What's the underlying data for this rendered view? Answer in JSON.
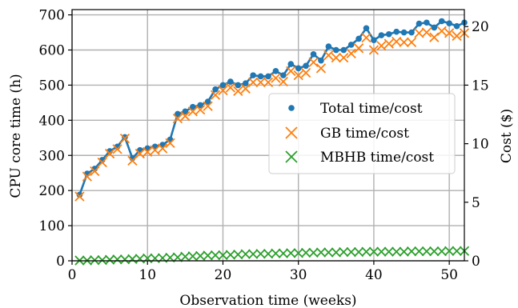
{
  "chart_data": {
    "type": "line",
    "xlabel": "Observation time (weeks)",
    "ylabel": "CPU core time (h)",
    "y2label": "Cost ($)",
    "xlim": [
      0,
      52
    ],
    "ylim": [
      0,
      715
    ],
    "y2lim": [
      0,
      21.45
    ],
    "xticks": [
      0,
      10,
      20,
      30,
      40,
      50
    ],
    "yticks": [
      0,
      100,
      200,
      300,
      400,
      500,
      600,
      700
    ],
    "y2ticks": [
      0,
      5,
      10,
      15,
      20
    ],
    "grid": true,
    "legend_position": "center-right",
    "x": [
      1,
      2,
      3,
      4,
      5,
      6,
      7,
      8,
      9,
      10,
      11,
      12,
      13,
      14,
      15,
      16,
      17,
      18,
      19,
      20,
      21,
      22,
      23,
      24,
      25,
      26,
      27,
      28,
      29,
      30,
      31,
      32,
      33,
      34,
      35,
      36,
      37,
      38,
      39,
      40,
      41,
      42,
      43,
      44,
      45,
      46,
      47,
      48,
      49,
      50,
      51,
      52
    ],
    "series": [
      {
        "name": "Total time/cost",
        "marker": "dot",
        "color": "#1f77b4",
        "line": true,
        "values": [
          188,
          248,
          262,
          287,
          312,
          325,
          352,
          292,
          315,
          320,
          325,
          330,
          345,
          418,
          425,
          438,
          443,
          453,
          488,
          500,
          510,
          500,
          505,
          528,
          525,
          525,
          540,
          528,
          560,
          548,
          555,
          588,
          570,
          610,
          600,
          600,
          615,
          632,
          662,
          628,
          642,
          645,
          652,
          650,
          650,
          675,
          678,
          664,
          682,
          676,
          668,
          678
        ]
      },
      {
        "name": "GB time/cost",
        "marker": "x",
        "color": "#ff7f0e",
        "line": false,
        "values": [
          183,
          240,
          255,
          280,
          305,
          318,
          348,
          285,
          305,
          310,
          315,
          320,
          335,
          405,
          412,
          425,
          430,
          440,
          472,
          485,
          493,
          483,
          490,
          508,
          508,
          508,
          520,
          510,
          540,
          528,
          535,
          565,
          548,
          585,
          578,
          578,
          590,
          605,
          635,
          600,
          612,
          618,
          624,
          622,
          622,
          648,
          650,
          636,
          654,
          648,
          640,
          648
        ]
      },
      {
        "name": "MBHB time/cost",
        "marker": "x",
        "color": "#2ca02c",
        "line": false,
        "values": [
          1,
          1,
          2,
          2,
          3,
          4,
          4,
          5,
          6,
          7,
          7,
          8,
          9,
          10,
          12,
          13,
          14,
          15,
          16,
          16,
          17,
          18,
          19,
          19,
          20,
          20,
          21,
          21,
          22,
          22,
          23,
          23,
          24,
          24,
          24,
          25,
          25,
          25,
          26,
          26,
          26,
          26,
          26,
          26,
          27,
          27,
          27,
          27,
          27,
          28,
          28,
          28
        ]
      }
    ]
  }
}
